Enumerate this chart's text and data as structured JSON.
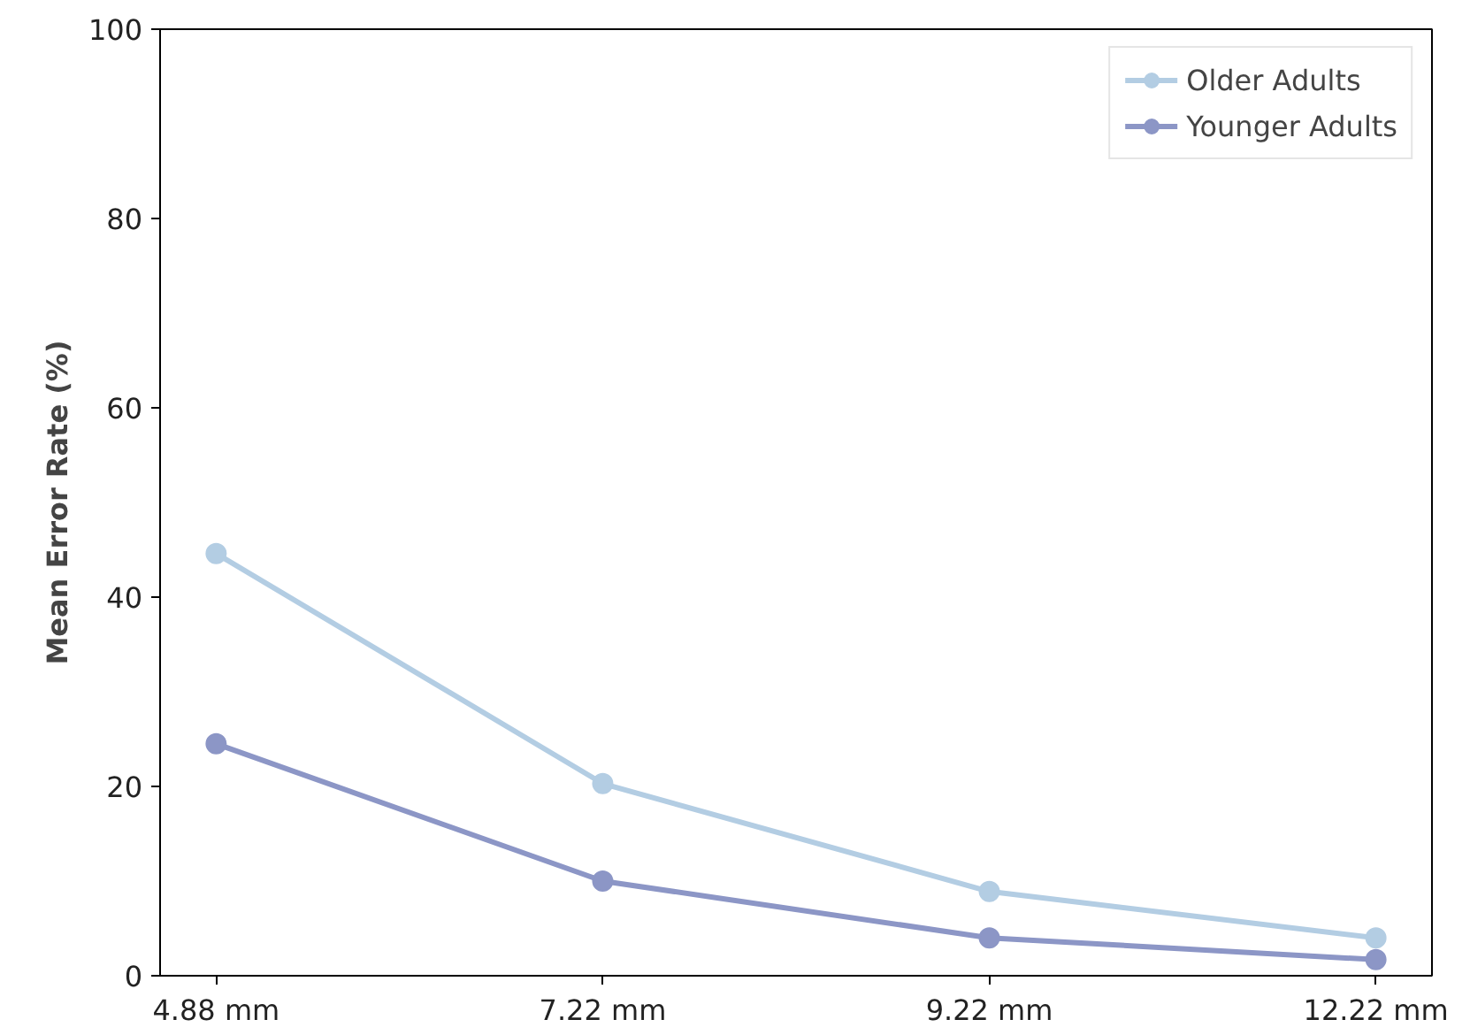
{
  "chart_data": {
    "type": "line",
    "ylabel": "Mean Error Rate (%)",
    "categories": [
      "4.88 mm",
      "7.22 mm",
      "9.22 mm",
      "12.22 mm"
    ],
    "series": [
      {
        "name": "Older Adults",
        "color": "#b3cde3",
        "values": [
          44.6,
          20.3,
          8.9,
          4.0
        ]
      },
      {
        "name": "Younger Adults",
        "color": "#8c96c6",
        "values": [
          24.5,
          10.0,
          4.0,
          1.7
        ]
      }
    ],
    "ylim": [
      0,
      100
    ],
    "yticks": [
      0,
      20,
      40,
      60,
      80,
      100
    ],
    "grid": false,
    "legend": "top right",
    "marker": "circle",
    "line_style": "solid"
  }
}
